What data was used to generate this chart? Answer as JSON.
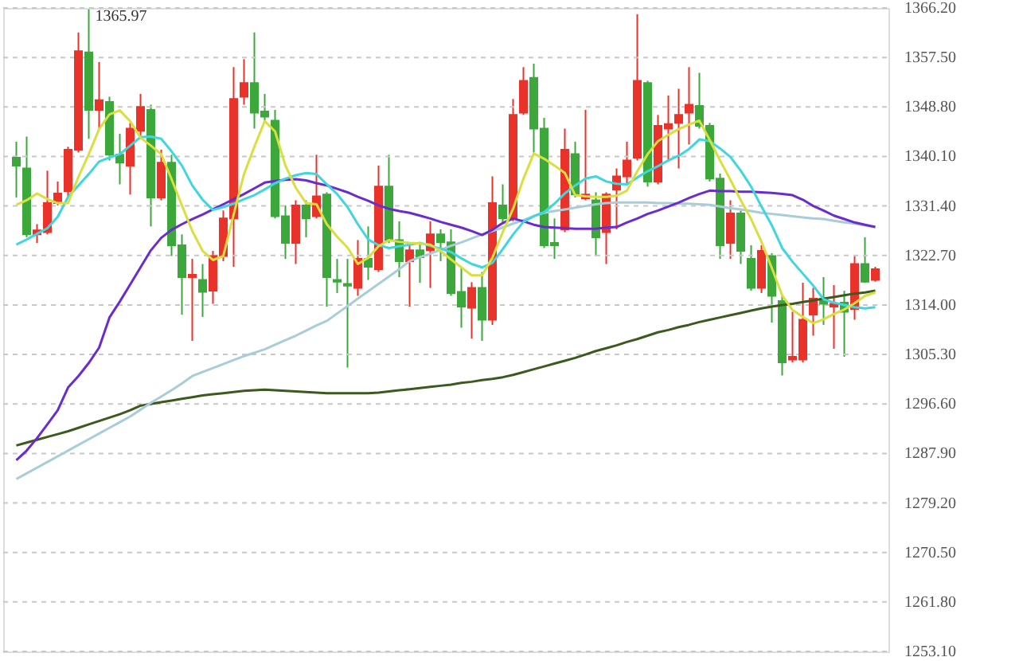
{
  "chart_data": {
    "type": "candlestick",
    "categories": [
      null,
      null,
      null,
      null,
      null,
      null,
      null,
      null,
      null,
      null,
      null,
      null,
      null,
      null,
      null,
      null,
      null,
      null,
      null,
      null,
      null,
      null,
      null,
      null,
      null,
      null,
      null,
      null,
      null,
      null,
      null,
      null,
      null,
      null,
      null,
      null,
      null,
      null,
      null,
      null,
      null,
      null,
      null,
      null,
      null,
      null,
      null,
      null,
      null,
      null,
      null,
      null,
      null,
      null,
      null,
      null,
      null,
      null,
      null,
      null,
      null,
      null,
      null,
      null,
      null,
      null,
      null,
      null,
      null,
      null,
      null,
      null,
      null,
      null,
      null,
      null,
      null,
      null,
      null,
      null,
      null,
      null,
      null,
      null
    ],
    "ohlc": [
      [
        1339.9,
        1342.7,
        1332.9,
        1338.5
      ],
      [
        1338.0,
        1343.6,
        1325.9,
        1326.4
      ],
      [
        1326.4,
        1328.2,
        1324.9,
        1327.1
      ],
      [
        1326.8,
        1337.6,
        1326.4,
        1331.9
      ],
      [
        1331.9,
        1335.7,
        1331.5,
        1333.6
      ],
      [
        1334.0,
        1341.8,
        1332.9,
        1341.3
      ],
      [
        1341.3,
        1361.9,
        1340.8,
        1358.6
      ],
      [
        1358.4,
        1365.97,
        1343.2,
        1348.3
      ],
      [
        1348.3,
        1356.7,
        1345.0,
        1350.0
      ],
      [
        1349.7,
        1350.6,
        1339.4,
        1340.4
      ],
      [
        1340.4,
        1344.1,
        1335.2,
        1339.0
      ],
      [
        1338.5,
        1346.0,
        1333.4,
        1345.0
      ],
      [
        1344.6,
        1351.1,
        1343.2,
        1348.8
      ],
      [
        1348.3,
        1349.2,
        1327.8,
        1332.9
      ],
      [
        1332.9,
        1341.3,
        1332.4,
        1339.0
      ],
      [
        1339.0,
        1340.4,
        1322.6,
        1324.5
      ],
      [
        1324.5,
        1326.4,
        1312.3,
        1318.9
      ],
      [
        1318.9,
        1322.1,
        1307.7,
        1319.3
      ],
      [
        1318.4,
        1321.2,
        1311.9,
        1316.3
      ],
      [
        1316.5,
        1323.5,
        1314.2,
        1322.6
      ],
      [
        1322.6,
        1330.6,
        1321.7,
        1329.2
      ],
      [
        1329.2,
        1355.8,
        1320.7,
        1350.2
      ],
      [
        1350.6,
        1357.2,
        1349.2,
        1353.0
      ],
      [
        1353.0,
        1361.9,
        1345.0,
        1347.8
      ],
      [
        1348.0,
        1351.1,
        1346.4,
        1347.1
      ],
      [
        1346.4,
        1348.3,
        1329.2,
        1329.6
      ],
      [
        1329.6,
        1331.5,
        1322.1,
        1324.9
      ],
      [
        1324.9,
        1332.4,
        1321.2,
        1331.5
      ],
      [
        1331.5,
        1332.4,
        1325.9,
        1329.2
      ],
      [
        1329.6,
        1340.4,
        1329.2,
        1333.1
      ],
      [
        1333.4,
        1333.8,
        1313.7,
        1318.9
      ],
      [
        1318.4,
        1322.1,
        1316.1,
        1318.1
      ],
      [
        1317.7,
        1322.1,
        1303.0,
        1317.4
      ],
      [
        1317.0,
        1325.4,
        1315.6,
        1322.1
      ],
      [
        1322.1,
        1327.8,
        1318.4,
        1320.7
      ],
      [
        1320.3,
        1338.5,
        1319.8,
        1334.8
      ],
      [
        1334.8,
        1340.4,
        1324.9,
        1325.4
      ],
      [
        1325.4,
        1328.7,
        1318.9,
        1321.7
      ],
      [
        1321.7,
        1325.0,
        1313.7,
        1323.6
      ],
      [
        1323.6,
        1325.0,
        1317.9,
        1322.4
      ],
      [
        1323.6,
        1328.7,
        1317.0,
        1326.4
      ],
      [
        1326.4,
        1327.3,
        1321.7,
        1325.0
      ],
      [
        1325.0,
        1327.3,
        1315.6,
        1316.1
      ],
      [
        1316.3,
        1320.7,
        1310.0,
        1313.7
      ],
      [
        1313.5,
        1318.0,
        1308.1,
        1317.0
      ],
      [
        1317.0,
        1319.8,
        1307.7,
        1311.4
      ],
      [
        1311.4,
        1336.6,
        1310.5,
        1331.9
      ],
      [
        1331.5,
        1335.2,
        1328.2,
        1329.2
      ],
      [
        1329.2,
        1350.2,
        1328.7,
        1347.4
      ],
      [
        1347.8,
        1355.8,
        1347.4,
        1353.4
      ],
      [
        1353.9,
        1356.4,
        1340.8,
        1345.0
      ],
      [
        1345.0,
        1346.9,
        1324.0,
        1324.5
      ],
      [
        1324.9,
        1329.2,
        1322.1,
        1324.5
      ],
      [
        1327.3,
        1345.0,
        1326.8,
        1341.3
      ],
      [
        1340.5,
        1342.7,
        1332.9,
        1333.4
      ],
      [
        1332.7,
        1348.3,
        1332.4,
        1333.4
      ],
      [
        1332.4,
        1333.8,
        1322.6,
        1325.9
      ],
      [
        1326.8,
        1333.8,
        1321.2,
        1333.4
      ],
      [
        1334.3,
        1338.0,
        1327.3,
        1336.6
      ],
      [
        1336.6,
        1342.7,
        1335.2,
        1339.4
      ],
      [
        1339.9,
        1365.1,
        1339.4,
        1353.4
      ],
      [
        1353.0,
        1353.4,
        1334.8,
        1335.7
      ],
      [
        1335.7,
        1347.4,
        1335.2,
        1345.5
      ],
      [
        1345.0,
        1350.8,
        1339.4,
        1345.8
      ],
      [
        1346.0,
        1352.0,
        1338.0,
        1347.4
      ],
      [
        1347.8,
        1355.8,
        1342.2,
        1349.2
      ],
      [
        1349.0,
        1354.8,
        1345.0,
        1345.5
      ],
      [
        1345.5,
        1346.0,
        1335.7,
        1336.2
      ],
      [
        1336.2,
        1337.1,
        1322.1,
        1324.5
      ],
      [
        1324.9,
        1332.4,
        1322.1,
        1330.1
      ],
      [
        1330.1,
        1330.6,
        1321.2,
        1323.5
      ],
      [
        1322.1,
        1324.5,
        1316.5,
        1317.0
      ],
      [
        1317.0,
        1324.5,
        1316.1,
        1323.5
      ],
      [
        1322.6,
        1323.1,
        1310.9,
        1315.6
      ],
      [
        1314.7,
        1315.6,
        1301.6,
        1303.9
      ],
      [
        1304.4,
        1312.8,
        1303.9,
        1304.9
      ],
      [
        1304.4,
        1317.9,
        1303.9,
        1311.4
      ],
      [
        1312.3,
        1317.0,
        1308.6,
        1315.1
      ],
      [
        1315.1,
        1318.9,
        1310.5,
        1314.2
      ],
      [
        1313.7,
        1317.5,
        1306.3,
        1314.2
      ],
      [
        1314.4,
        1316.5,
        1304.9,
        1312.8
      ],
      [
        1313.3,
        1322.6,
        1311.4,
        1321.2
      ],
      [
        1321.2,
        1325.9,
        1317.9,
        1318.1
      ],
      [
        1318.4,
        1320.7,
        1318.1,
        1320.3
      ]
    ],
    "colors": [
      "#3ca83c",
      "#3ca83c",
      "#e8322a",
      "#e8322a",
      "#e8322a",
      "#e8322a",
      "#e8322a",
      "#3ca83c",
      "#e8322a",
      "#3ca83c",
      "#3ca83c",
      "#e8322a",
      "#e8322a",
      "#3ca83c",
      "#e8322a",
      "#3ca83c",
      "#3ca83c",
      "#e8322a",
      "#3ca83c",
      "#e8322a",
      "#e8322a",
      "#e8322a",
      "#e8322a",
      "#3ca83c",
      "#3ca83c",
      "#3ca83c",
      "#3ca83c",
      "#e8322a",
      "#3ca83c",
      "#e8322a",
      "#3ca83c",
      "#3ca83c",
      "#3ca83c",
      "#e8322a",
      "#3ca83c",
      "#e8322a",
      "#3ca83c",
      "#3ca83c",
      "#e8322a",
      "#3ca83c",
      "#e8322a",
      "#3ca83c",
      "#3ca83c",
      "#3ca83c",
      "#e8322a",
      "#3ca83c",
      "#e8322a",
      "#3ca83c",
      "#e8322a",
      "#e8322a",
      "#3ca83c",
      "#3ca83c",
      "#3ca83c",
      "#e8322a",
      "#3ca83c",
      "#e8322a",
      "#3ca83c",
      "#e8322a",
      "#e8322a",
      "#e8322a",
      "#e8322a",
      "#3ca83c",
      "#e8322a",
      "#e8322a",
      "#e8322a",
      "#e8322a",
      "#3ca83c",
      "#3ca83c",
      "#3ca83c",
      "#e8322a",
      "#3ca83c",
      "#3ca83c",
      "#e8322a",
      "#3ca83c",
      "#3ca83c",
      "#e8322a",
      "#e8322a",
      "#e8322a",
      "#3ca83c",
      "#e8322a",
      "#3ca83c",
      "#e8322a",
      "#3ca83c",
      "#e8322a"
    ],
    "series": [
      {
        "type": "line",
        "color": "#3d5a1e",
        "values": [
          1289.3,
          1289.8,
          1290.3,
          1290.8,
          1291.3,
          1291.8,
          1292.4,
          1293.0,
          1293.6,
          1294.2,
          1294.8,
          1295.5,
          1296.3,
          1296.6,
          1296.9,
          1297.2,
          1297.5,
          1297.8,
          1298.1,
          1298.3,
          1298.5,
          1298.7,
          1298.9,
          1299.0,
          1299.1,
          1299.0,
          1298.9,
          1298.8,
          1298.7,
          1298.6,
          1298.5,
          1298.5,
          1298.5,
          1298.5,
          1298.5,
          1298.6,
          1298.8,
          1299.0,
          1299.2,
          1299.4,
          1299.6,
          1299.8,
          1300.0,
          1300.3,
          1300.5,
          1300.8,
          1301.0,
          1301.3,
          1301.7,
          1302.2,
          1302.7,
          1303.2,
          1303.7,
          1304.2,
          1304.7,
          1305.3,
          1305.9,
          1306.4,
          1306.9,
          1307.5,
          1308.0,
          1308.6,
          1309.2,
          1309.6,
          1310.1,
          1310.5,
          1311.0,
          1311.4,
          1311.8,
          1312.2,
          1312.6,
          1313.0,
          1313.4,
          1313.7,
          1314.0,
          1314.2,
          1314.5,
          1314.8,
          1315.1,
          1315.4,
          1315.7,
          1316.0,
          1316.2,
          1316.5
        ]
      },
      {
        "type": "line",
        "color": "#a9cdd8",
        "values": [
          1283.4,
          1284.4,
          1285.4,
          1286.4,
          1287.4,
          1288.4,
          1289.4,
          1290.4,
          1291.4,
          1292.4,
          1293.4,
          1294.4,
          1295.6,
          1296.8,
          1297.9,
          1299.0,
          1300.2,
          1301.5,
          1302.2,
          1302.9,
          1303.6,
          1304.3,
          1305.0,
          1305.6,
          1306.2,
          1307.0,
          1307.8,
          1308.6,
          1309.5,
          1310.4,
          1311.2,
          1312.5,
          1313.8,
          1315.1,
          1316.4,
          1317.7,
          1319.0,
          1320.3,
          1321.7,
          1322.4,
          1323.0,
          1323.7,
          1324.4,
          1325.0,
          1325.7,
          1326.4,
          1327.0,
          1327.6,
          1328.3,
          1328.9,
          1329.6,
          1330.2,
          1330.5,
          1330.8,
          1331.1,
          1331.4,
          1331.7,
          1331.9,
          1332.0,
          1332.0,
          1332.0,
          1332.0,
          1331.9,
          1331.9,
          1331.8,
          1331.8,
          1331.7,
          1331.6,
          1331.3,
          1331.0,
          1330.8,
          1330.5,
          1330.2,
          1330.0,
          1329.8,
          1329.6,
          1329.4,
          1329.2,
          1329.1,
          1328.8,
          1328.5,
          1328.3,
          1328.0,
          1327.7
        ]
      },
      {
        "type": "line",
        "color": "#6a2ccf",
        "values": [
          1286.7,
          1288.4,
          1290.6,
          1293.0,
          1295.5,
          1299.5,
          1301.5,
          1303.8,
          1306.5,
          1311.8,
          1314.6,
          1317.6,
          1320.6,
          1323.6,
          1325.8,
          1327.2,
          1328.2,
          1329.1,
          1329.9,
          1330.8,
          1331.7,
          1332.6,
          1333.5,
          1334.5,
          1335.5,
          1335.8,
          1336.0,
          1336.1,
          1335.9,
          1335.4,
          1335.0,
          1334.4,
          1333.8,
          1333.0,
          1332.3,
          1331.5,
          1330.9,
          1330.5,
          1330.2,
          1329.7,
          1329.2,
          1328.6,
          1328.1,
          1327.6,
          1327.0,
          1326.3,
          1327.2,
          1328.4,
          1329.2,
          1328.7,
          1328.1,
          1327.7,
          1327.6,
          1327.5,
          1327.4,
          1327.4,
          1327.4,
          1327.6,
          1327.7,
          1328.5,
          1329.2,
          1330.0,
          1330.6,
          1331.3,
          1332.0,
          1332.8,
          1333.5,
          1334.1,
          1334.0,
          1334.0,
          1333.9,
          1333.9,
          1333.8,
          1333.7,
          1333.5,
          1333.3,
          1332.5,
          1331.4,
          1330.6,
          1329.7,
          1329.1,
          1328.5,
          1328.1,
          1327.7
        ]
      },
      {
        "type": "line",
        "color": "#3fd6e0",
        "values": [
          1324.6,
          1325.5,
          1326.5,
          1327.5,
          1329.5,
          1333.0,
          1335.0,
          1337.0,
          1339.2,
          1339.9,
          1340.5,
          1342.0,
          1343.5,
          1343.6,
          1343.2,
          1341.0,
          1338.5,
          1335.0,
          1332.5,
          1330.7,
          1331.2,
          1331.8,
          1332.6,
          1333.3,
          1334.3,
          1335.4,
          1336.2,
          1336.8,
          1337.2,
          1337.0,
          1335.2,
          1333.5,
          1331.2,
          1328.2,
          1325.5,
          1324.5,
          1324.0,
          1324.3,
          1324.6,
          1324.9,
          1324.4,
          1323.9,
          1323.3,
          1322.2,
          1321.2,
          1320.6,
          1321.4,
          1323.8,
          1326.4,
          1328.6,
          1329.6,
          1330.3,
          1331.8,
          1333.6,
          1335.0,
          1336.2,
          1336.6,
          1335.7,
          1335.3,
          1335.2,
          1336.4,
          1337.5,
          1338.4,
          1339.4,
          1340.2,
          1341.4,
          1343.1,
          1342.8,
          1341.5,
          1340.0,
          1337.6,
          1334.8,
          1331.3,
          1328.0,
          1324.0,
          1321.6,
          1319.5,
          1317.4,
          1315.0,
          1314.4,
          1314.0,
          1313.6,
          1313.4,
          1313.6
        ]
      },
      {
        "type": "line",
        "color": "#d9df3e",
        "values": [
          1331.6,
          1332.4,
          1333.6,
          1332.6,
          1331.9,
          1331.9,
          1336.5,
          1340.5,
          1344.9,
          1347.5,
          1348.2,
          1346.3,
          1343.4,
          1342.0,
          1340.5,
          1336.1,
          1331.5,
          1327.0,
          1323.5,
          1321.9,
          1322.6,
          1329.9,
          1337.0,
          1341.8,
          1346.3,
          1344.5,
          1338.5,
          1334.6,
          1331.9,
          1331.7,
          1328.2,
          1326.0,
          1324.1,
          1321.2,
          1322.3,
          1324.3,
          1325.4,
          1325.1,
          1324.9,
          1324.8,
          1324.6,
          1323.5,
          1322.0,
          1320.6,
          1319.2,
          1319.2,
          1322.3,
          1326.8,
          1330.9,
          1336.2,
          1340.6,
          1339.7,
          1338.5,
          1337.2,
          1333.3,
          1333.1,
          1333.0,
          1333.0,
          1333.2,
          1334.1,
          1337.5,
          1340.5,
          1342.8,
          1343.9,
          1344.9,
          1345.7,
          1346.4,
          1343.0,
          1339.4,
          1336.0,
          1332.4,
          1329.1,
          1325.1,
          1320.5,
          1315.7,
          1313.1,
          1311.9,
          1310.8,
          1311.5,
          1312.4,
          1313.2,
          1314.3,
          1315.6,
          1316.2
        ]
      }
    ],
    "ylim": [
      1253.1,
      1366.2
    ],
    "yticks": [
      {
        "value": 1253.1,
        "label": "1253.10"
      },
      {
        "value": 1261.8,
        "label": "1261.80"
      },
      {
        "value": 1270.5,
        "label": "1270.50"
      },
      {
        "value": 1279.2,
        "label": "1279.20"
      },
      {
        "value": 1287.9,
        "label": "1287.90"
      },
      {
        "value": 1296.6,
        "label": "1296.60"
      },
      {
        "value": 1305.3,
        "label": "1305.30"
      },
      {
        "value": 1314.0,
        "label": "1314.00"
      },
      {
        "value": 1322.7,
        "label": "1322.70"
      },
      {
        "value": 1331.4,
        "label": "1331.40"
      },
      {
        "value": 1340.1,
        "label": "1340.10"
      },
      {
        "value": 1348.8,
        "label": "1348.80"
      },
      {
        "value": 1357.5,
        "label": "1357.50"
      },
      {
        "value": 1366.2,
        "label": "1366.20"
      }
    ],
    "grid": "y",
    "tick_labels": "y",
    "annotations": [
      "1365.97"
    ]
  }
}
